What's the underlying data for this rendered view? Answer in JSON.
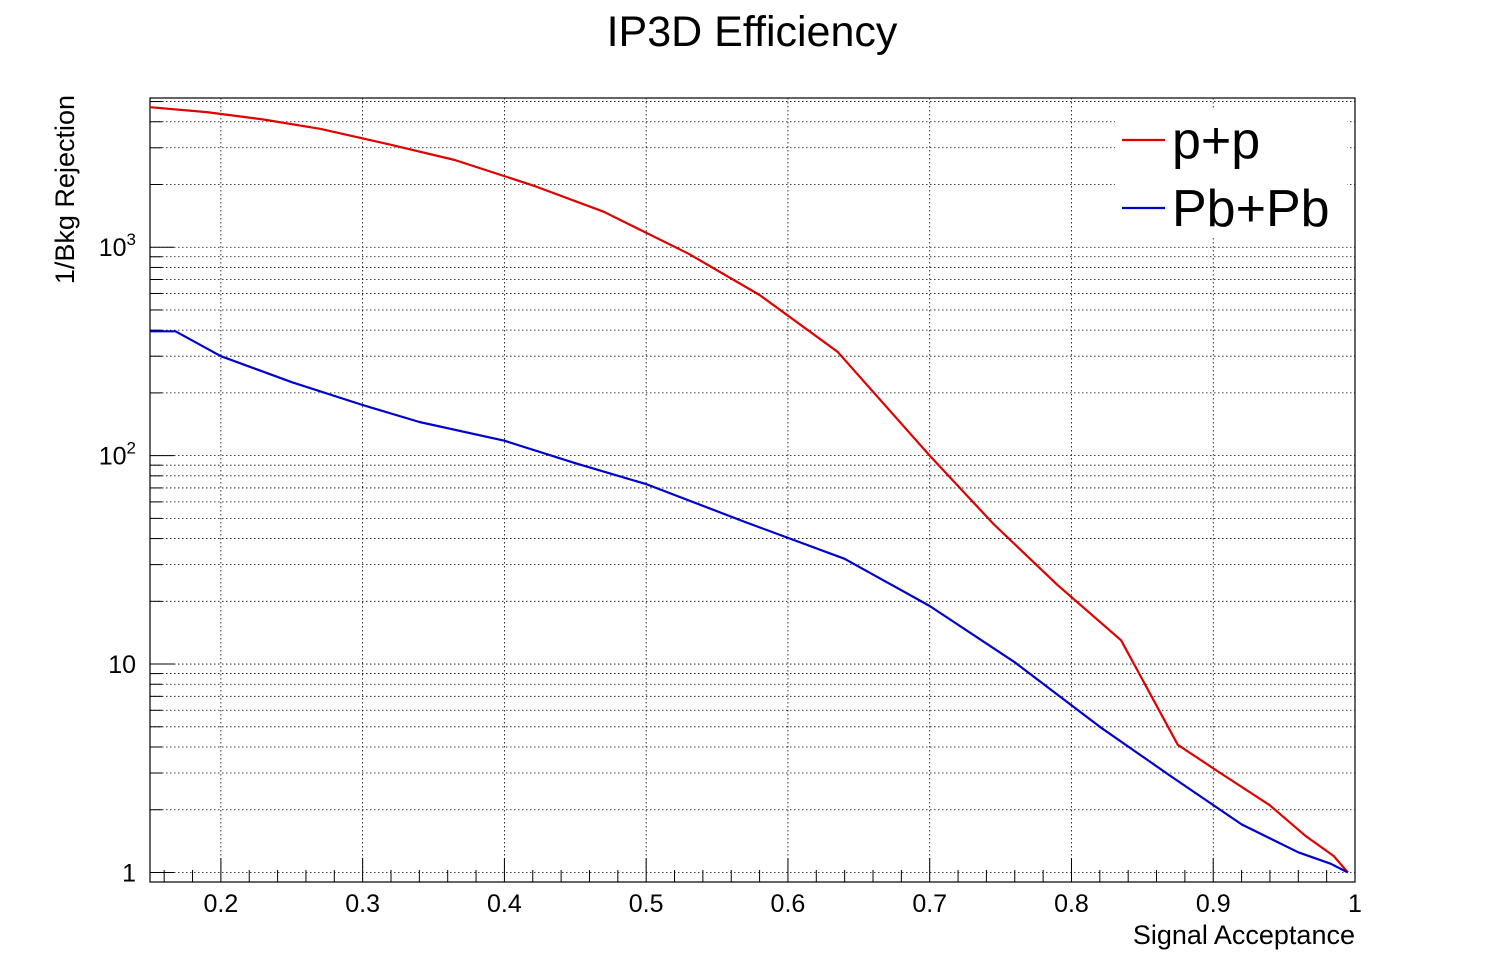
{
  "chart_data": {
    "type": "line",
    "title": "IP3D Efficiency",
    "xlabel": "Signal Acceptance",
    "ylabel": "1/Bkg Rejection",
    "xlim": [
      0.15,
      1.0
    ],
    "ylim": [
      0.9,
      5200
    ],
    "yscale": "log",
    "grid": true,
    "legend_position": "top-right",
    "x_ticks": [
      {
        "value": 0.2,
        "label": "0.2"
      },
      {
        "value": 0.3,
        "label": "0.3"
      },
      {
        "value": 0.4,
        "label": "0.4"
      },
      {
        "value": 0.5,
        "label": "0.5"
      },
      {
        "value": 0.6,
        "label": "0.6"
      },
      {
        "value": 0.7,
        "label": "0.7"
      },
      {
        "value": 0.8,
        "label": "0.8"
      },
      {
        "value": 0.9,
        "label": "0.9"
      },
      {
        "value": 1.0,
        "label": "1"
      }
    ],
    "y_ticks": [
      {
        "value": 1,
        "label": "1",
        "sup": ""
      },
      {
        "value": 10,
        "label": "10",
        "sup": ""
      },
      {
        "value": 100,
        "label": "10",
        "sup": "2"
      },
      {
        "value": 1000,
        "label": "10",
        "sup": "3"
      }
    ],
    "series": [
      {
        "name": "p+p",
        "color": "#e00000",
        "x": [
          0.15,
          0.19,
          0.23,
          0.27,
          0.32,
          0.365,
          0.42,
          0.47,
          0.53,
          0.58,
          0.635,
          0.7,
          0.745,
          0.79,
          0.835,
          0.875,
          0.905,
          0.94,
          0.965,
          0.985,
          0.995
        ],
        "y": [
          4700,
          4450,
          4100,
          3700,
          3100,
          2620,
          1980,
          1480,
          930,
          590,
          315,
          100,
          47,
          24,
          13,
          4.1,
          3.0,
          2.1,
          1.5,
          1.2,
          1.0
        ]
      },
      {
        "name": "Pb+Pb",
        "color": "#0000cc",
        "x": [
          0.15,
          0.168,
          0.2,
          0.25,
          0.3,
          0.34,
          0.4,
          0.45,
          0.5,
          0.57,
          0.64,
          0.7,
          0.76,
          0.82,
          0.87,
          0.92,
          0.96,
          0.983,
          0.995
        ],
        "y": [
          395,
          395,
          300,
          225,
          175,
          145,
          118,
          92,
          73,
          48,
          32,
          19,
          10.2,
          5,
          2.9,
          1.7,
          1.25,
          1.1,
          1.0
        ]
      }
    ]
  }
}
